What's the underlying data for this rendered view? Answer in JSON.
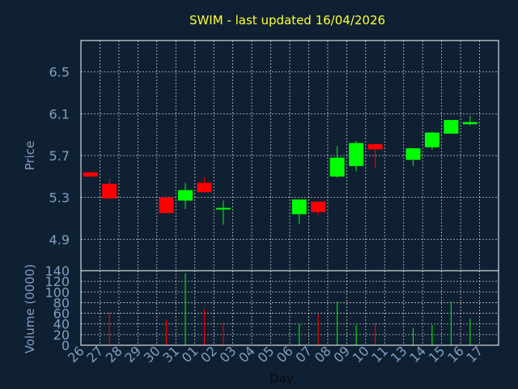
{
  "colors": {
    "background": "#0f2033",
    "title": "#ffff33",
    "axis_text": "#7f9fc0",
    "grid": "#ffffff",
    "frame": "#ffffff",
    "up": "#00ff00",
    "down": "#ff0000"
  },
  "chart_data": [
    {
      "type": "candlestick",
      "title": "SWIM - last updated 16/04/2026",
      "ylabel": "Price",
      "xlabel": "",
      "ylim": [
        4.6,
        6.8
      ],
      "yticks": [
        "4.9",
        "5.3",
        "5.7",
        "6.1",
        "6.5"
      ],
      "grid": true,
      "categories": [
        "26",
        "27",
        "28",
        "29",
        "30",
        "31",
        "01",
        "02",
        "03",
        "04",
        "05",
        "06",
        "07",
        "08",
        "09",
        "10",
        "11",
        "13",
        "14",
        "15",
        "16",
        "17"
      ],
      "candles": [
        {
          "x": "26",
          "open": 5.54,
          "high": 5.54,
          "low": 5.5,
          "close": 5.5
        },
        {
          "x": "27",
          "open": 5.43,
          "high": 5.48,
          "low": 5.29,
          "close": 5.29
        },
        {
          "x": "30",
          "open": 5.3,
          "high": 5.3,
          "low": 5.15,
          "close": 5.15
        },
        {
          "x": "31",
          "open": 5.27,
          "high": 5.44,
          "low": 5.19,
          "close": 5.37
        },
        {
          "x": "01",
          "open": 5.44,
          "high": 5.49,
          "low": 5.35,
          "close": 5.35
        },
        {
          "x": "02",
          "open": 5.2,
          "high": 5.27,
          "low": 5.04,
          "close": 5.2
        },
        {
          "x": "06",
          "open": 5.14,
          "high": 5.28,
          "low": 5.05,
          "close": 5.28
        },
        {
          "x": "07",
          "open": 5.26,
          "high": 5.26,
          "low": 5.13,
          "close": 5.16
        },
        {
          "x": "08",
          "open": 5.5,
          "high": 5.79,
          "low": 5.49,
          "close": 5.68
        },
        {
          "x": "09",
          "open": 5.6,
          "high": 5.84,
          "low": 5.55,
          "close": 5.82
        },
        {
          "x": "10",
          "open": 5.81,
          "high": 5.81,
          "low": 5.58,
          "close": 5.76
        },
        {
          "x": "13",
          "open": 5.66,
          "high": 5.77,
          "low": 5.6,
          "close": 5.77
        },
        {
          "x": "14",
          "open": 5.78,
          "high": 5.93,
          "low": 5.76,
          "close": 5.92
        },
        {
          "x": "15",
          "open": 5.91,
          "high": 6.04,
          "low": 5.91,
          "close": 6.04
        },
        {
          "x": "16",
          "open": 6.0,
          "high": 6.08,
          "low": 5.99,
          "close": 6.02
        }
      ]
    },
    {
      "type": "bar",
      "ylabel": "Volume (0000)",
      "xlabel": "Day",
      "ylim": [
        0,
        140
      ],
      "yticks": [
        "0",
        "20",
        "40",
        "60",
        "80",
        "100",
        "120",
        "140"
      ],
      "grid": true,
      "categories": [
        "26",
        "27",
        "28",
        "29",
        "30",
        "31",
        "01",
        "02",
        "03",
        "04",
        "05",
        "06",
        "07",
        "08",
        "09",
        "10",
        "11",
        "13",
        "14",
        "15",
        "16",
        "17"
      ],
      "bars": [
        {
          "x": "27",
          "value": 62,
          "direction": "down"
        },
        {
          "x": "30",
          "value": 48,
          "direction": "down"
        },
        {
          "x": "31",
          "value": 135,
          "direction": "up"
        },
        {
          "x": "01",
          "value": 68,
          "direction": "down"
        },
        {
          "x": "02",
          "value": 43,
          "direction": "down"
        },
        {
          "x": "06",
          "value": 40,
          "direction": "up"
        },
        {
          "x": "07",
          "value": 58,
          "direction": "down"
        },
        {
          "x": "08",
          "value": 82,
          "direction": "up"
        },
        {
          "x": "09",
          "value": 38,
          "direction": "up"
        },
        {
          "x": "10",
          "value": 42,
          "direction": "down"
        },
        {
          "x": "13",
          "value": 33,
          "direction": "up"
        },
        {
          "x": "14",
          "value": 38,
          "direction": "up"
        },
        {
          "x": "15",
          "value": 82,
          "direction": "up"
        },
        {
          "x": "16",
          "value": 50,
          "direction": "up"
        }
      ]
    }
  ]
}
